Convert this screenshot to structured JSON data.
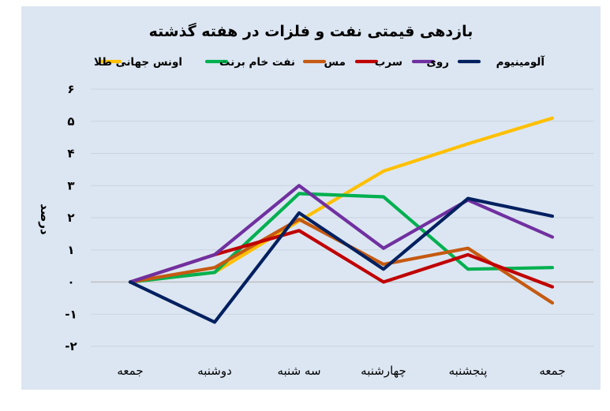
{
  "chart_data": {
    "type": "line",
    "title": "بازدهی قیمتی نفت و فلزات در هفته گذشته",
    "ylabel": "درصد",
    "xlabel": "",
    "categories": [
      "جمعه",
      "دوشنبه",
      "سه شنبه",
      "چهارشنبه",
      "پنجشنبه",
      "جمعه"
    ],
    "y_ticks": [
      {
        "value": 6,
        "label": "۶"
      },
      {
        "value": 5,
        "label": "۵"
      },
      {
        "value": 4,
        "label": "۴"
      },
      {
        "value": 3,
        "label": "۳"
      },
      {
        "value": 2,
        "label": "۲"
      },
      {
        "value": 1,
        "label": "۱"
      },
      {
        "value": 0,
        "label": "۰"
      },
      {
        "value": -1,
        "label": "-۱"
      },
      {
        "value": -2,
        "label": "-۲"
      }
    ],
    "ylim": [
      -2,
      6
    ],
    "grid": true,
    "legend_position": "top",
    "background_color": "#dce6f2",
    "series": [
      {
        "name": "اونس جهانی طلا",
        "color": "#ffc000",
        "values": [
          0,
          0.3,
          1.9,
          3.45,
          4.3,
          5.1
        ]
      },
      {
        "name": "نفت خام برنت",
        "color": "#00b050",
        "values": [
          0,
          0.3,
          2.75,
          2.65,
          0.4,
          0.45
        ]
      },
      {
        "name": "مس",
        "color": "#c55a11",
        "values": [
          0,
          0.45,
          1.95,
          0.55,
          1.05,
          -0.65
        ]
      },
      {
        "name": "سرب",
        "color": "#c00000",
        "values": [
          0,
          0.85,
          1.6,
          0,
          0.85,
          -0.15
        ]
      },
      {
        "name": "روی",
        "color": "#7030a0",
        "values": [
          0,
          0.85,
          3,
          1.05,
          2.55,
          1.4
        ]
      },
      {
        "name": "آلومینیوم",
        "color": "#002060",
        "values": [
          0,
          -1.25,
          2.15,
          0.4,
          2.6,
          2.05
        ]
      }
    ]
  }
}
